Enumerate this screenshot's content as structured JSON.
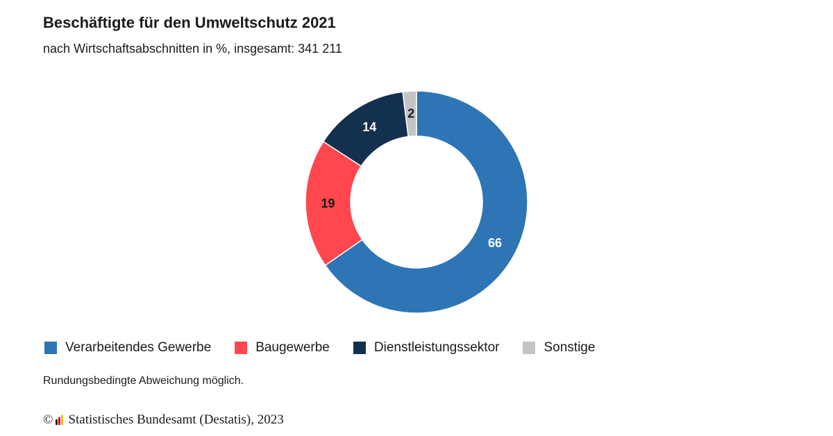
{
  "title": "Beschäftigte für den Umweltschutz 2021",
  "subtitle": "nach Wirtschaftsabschnitten in %, insgesamt: 341 211",
  "note": "Rundungsbedingte Abweichung möglich.",
  "footer": {
    "copyright_symbol": "©",
    "source": "Statistisches Bundesamt (Destatis), 2023"
  },
  "chart_data": {
    "type": "pie",
    "variant": "donut",
    "categories": [
      "Verarbeitendes Gewerbe",
      "Baugewerbe",
      "Dienstleistungssektor",
      "Sonstige"
    ],
    "values": [
      66,
      19,
      14,
      2
    ],
    "data_labels": [
      "66",
      "19",
      "14",
      "2"
    ],
    "colors": [
      "#2e75b6",
      "#ff474d",
      "#14304f",
      "#c4c4c4"
    ],
    "label_colors": [
      "#ffffff",
      "#1a1a1a",
      "#ffffff",
      "#1a1a1a"
    ],
    "start": "top, clockwise",
    "legend_position": "bottom"
  }
}
